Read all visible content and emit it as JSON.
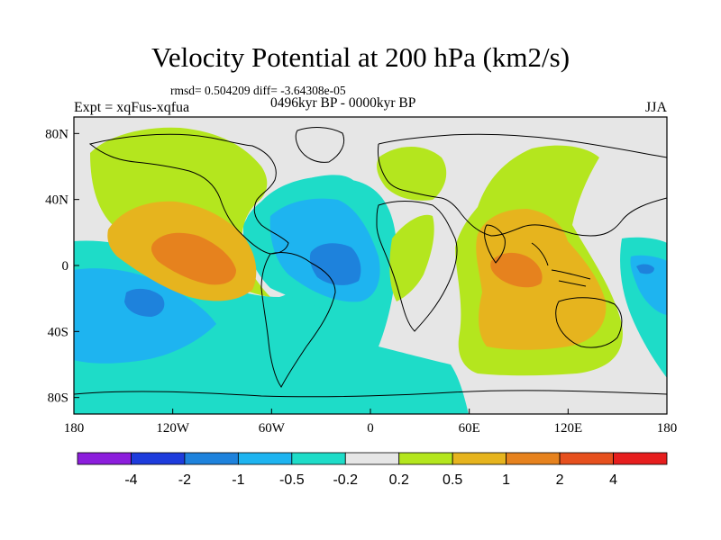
{
  "header": {
    "title": "Velocity Potential at 200 hPa (km2/s)",
    "stats": "rmsd= 0.504209 diff= -3.64308e-05",
    "experiment": "Expt = xqFus-xqfua",
    "period": "0496kyr BP - 0000kyr BP",
    "season": "JJA"
  },
  "chart_data": {
    "type": "map",
    "variable": "Velocity Potential at 200 hPa",
    "units": "km2/s",
    "projection": "cylindrical equidistant",
    "lon_range": [
      -180,
      180
    ],
    "lat_range": [
      -90,
      90
    ],
    "x_ticks": [
      {
        "lon": -180,
        "label": "180"
      },
      {
        "lon": -120,
        "label": "120W"
      },
      {
        "lon": -60,
        "label": "60W"
      },
      {
        "lon": 0,
        "label": "0"
      },
      {
        "lon": 60,
        "label": "60E"
      },
      {
        "lon": 120,
        "label": "120E"
      },
      {
        "lon": 180,
        "label": "180"
      }
    ],
    "y_ticks": [
      {
        "lat": 80,
        "label": "80N"
      },
      {
        "lat": 40,
        "label": "40N"
      },
      {
        "lat": 0,
        "label": "0"
      },
      {
        "lat": -40,
        "label": "40S"
      },
      {
        "lat": -80,
        "label": "80S"
      }
    ],
    "colorbar": {
      "levels": [
        -4,
        -2,
        -1,
        -0.5,
        -0.2,
        0.2,
        0.5,
        1,
        2,
        4
      ],
      "labels": [
        "-4",
        "-2",
        "-1",
        "-0.5",
        "-0.2",
        "0.2",
        "0.5",
        "1",
        "2",
        "4"
      ],
      "colors": [
        "#8c1edc",
        "#1e3cdc",
        "#1e82dc",
        "#1eb4f0",
        "#1edcc8",
        "#e6e6e6",
        "#b4e61e",
        "#e6b41e",
        "#e6821e",
        "#e6501e",
        "#e61e1e"
      ]
    },
    "regions": [
      {
        "name": "north-pacific-positive",
        "level": "0.2 to 0.5",
        "color": "#b4e61e",
        "lon": -120,
        "lat": 45
      },
      {
        "name": "east-pacific-max",
        "level": "1 to 2",
        "color": "#e6821e",
        "lon": -100,
        "lat": 0
      },
      {
        "name": "atlantic-negative",
        "level": "-1 to -2",
        "color": "#1e82dc",
        "lon": -25,
        "lat": 0
      },
      {
        "name": "south-pacific-negative",
        "level": "-0.5 to -1",
        "color": "#1eb4f0",
        "lon": -150,
        "lat": -25
      },
      {
        "name": "indian-ocean-max",
        "level": "1 to 2",
        "color": "#e6821e",
        "lon": 80,
        "lat": -5
      },
      {
        "name": "west-pacific-negative",
        "level": "-0.5 to -1",
        "color": "#1eb4f0",
        "lon": 170,
        "lat": 0
      },
      {
        "name": "africa-positive",
        "level": "0.2 to 0.5",
        "color": "#b4e61e",
        "lon": 20,
        "lat": 20
      }
    ]
  }
}
